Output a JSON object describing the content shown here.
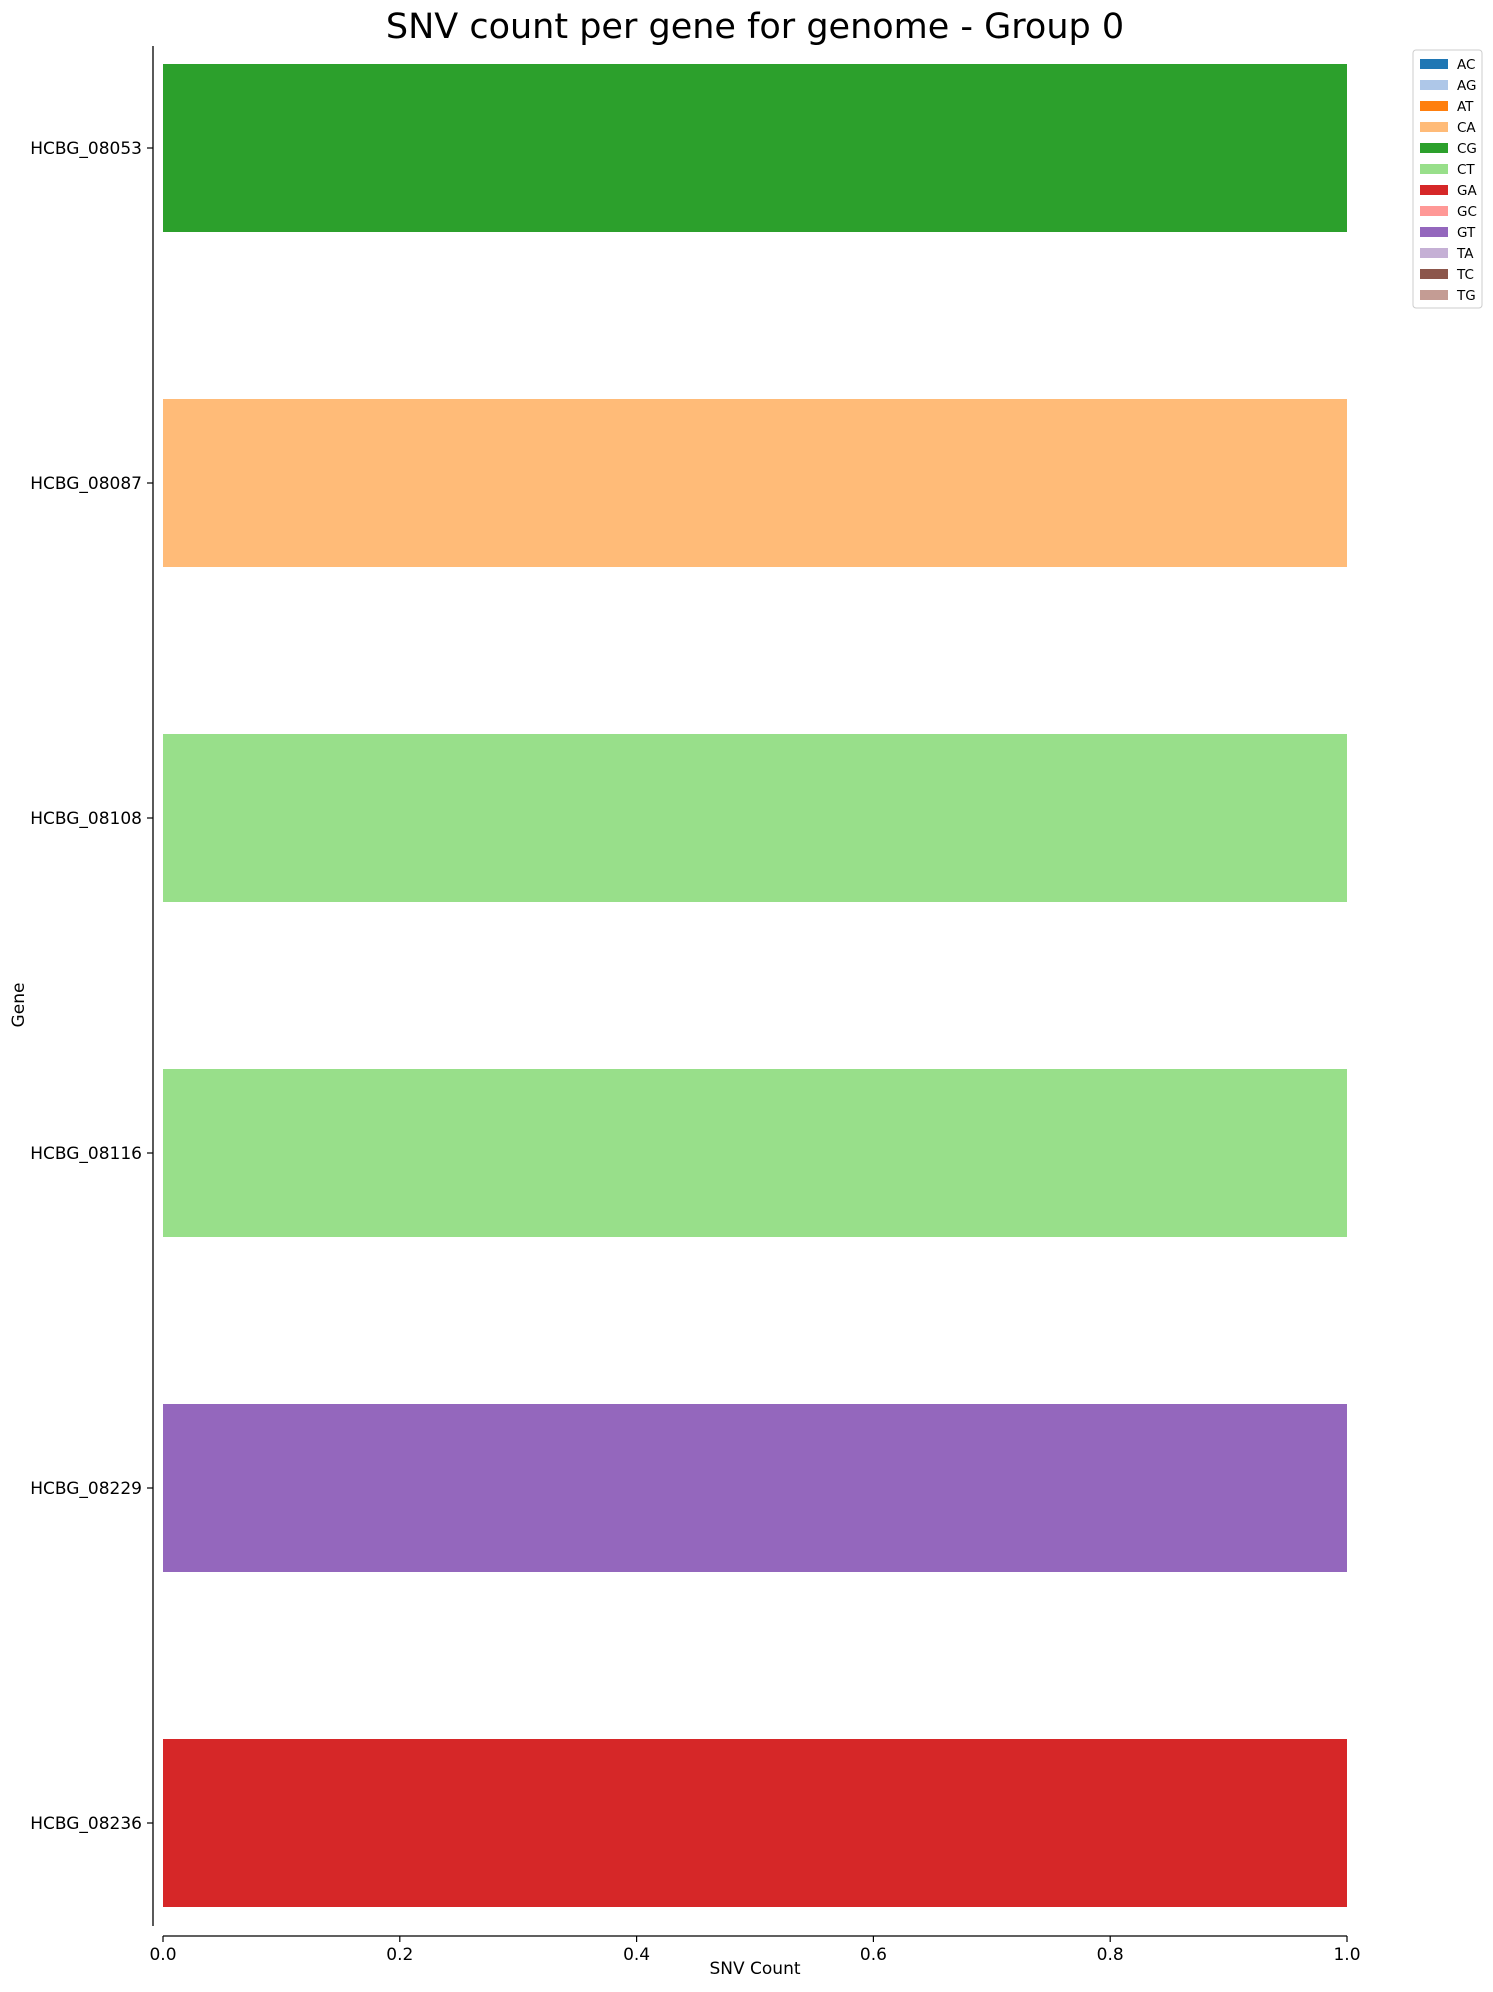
{
  "chart_data": {
    "type": "bar",
    "orientation": "horizontal",
    "title": "SNV count per gene for genome - Group 0",
    "xlabel": "SNV Count",
    "ylabel": "Gene",
    "xlim": [
      0.0,
      1.0
    ],
    "xticks": [
      "0.0",
      "0.2",
      "0.4",
      "0.6",
      "0.8",
      "1.0"
    ],
    "grid": false,
    "legend_position": "upper-right-outside",
    "categories": [
      "HCBG_08053",
      "HCBG_08087",
      "HCBG_08108",
      "HCBG_08116",
      "HCBG_08229",
      "HCBG_08236"
    ],
    "values": [
      1,
      1,
      1,
      1,
      1,
      1
    ],
    "bar_snv_types": [
      "CG",
      "CA",
      "CT",
      "CT",
      "GT",
      "GA"
    ],
    "legend": [
      {
        "label": "AC",
        "color": "#1f77b4"
      },
      {
        "label": "AG",
        "color": "#aec7e8"
      },
      {
        "label": "AT",
        "color": "#ff7f0e"
      },
      {
        "label": "CA",
        "color": "#ffbb78"
      },
      {
        "label": "CG",
        "color": "#2ca02c"
      },
      {
        "label": "CT",
        "color": "#98df8a"
      },
      {
        "label": "GA",
        "color": "#d62728"
      },
      {
        "label": "GC",
        "color": "#ff9896"
      },
      {
        "label": "GT",
        "color": "#9467bd"
      },
      {
        "label": "TA",
        "color": "#c5b0d5"
      },
      {
        "label": "TC",
        "color": "#8c564b"
      },
      {
        "label": "TG",
        "color": "#c49c94"
      }
    ]
  }
}
